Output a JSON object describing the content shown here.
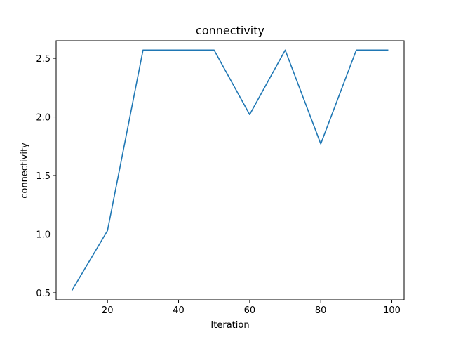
{
  "chart_data": {
    "type": "line",
    "title": "connectivity",
    "xlabel": "Iteration",
    "ylabel": "connectivity",
    "xlim": [
      5.55,
      103.45
    ],
    "ylim": [
      0.44,
      2.65
    ],
    "xticks": [
      20,
      40,
      60,
      80,
      100
    ],
    "yticks": [
      0.5,
      1.0,
      1.5,
      2.0,
      2.5
    ],
    "xtick_labels": [
      "20",
      "40",
      "60",
      "80",
      "100"
    ],
    "ytick_labels": [
      "0.5",
      "1.0",
      "1.5",
      "2.0",
      "2.5"
    ],
    "grid": false,
    "legend": "none",
    "line_color": "#1f77b4",
    "series": [
      {
        "x": [
          10,
          20,
          30,
          40,
          50,
          60,
          70,
          80,
          90,
          99
        ],
        "y": [
          0.52,
          1.03,
          2.57,
          2.57,
          2.57,
          2.02,
          2.57,
          1.77,
          2.57,
          2.57
        ]
      }
    ]
  }
}
